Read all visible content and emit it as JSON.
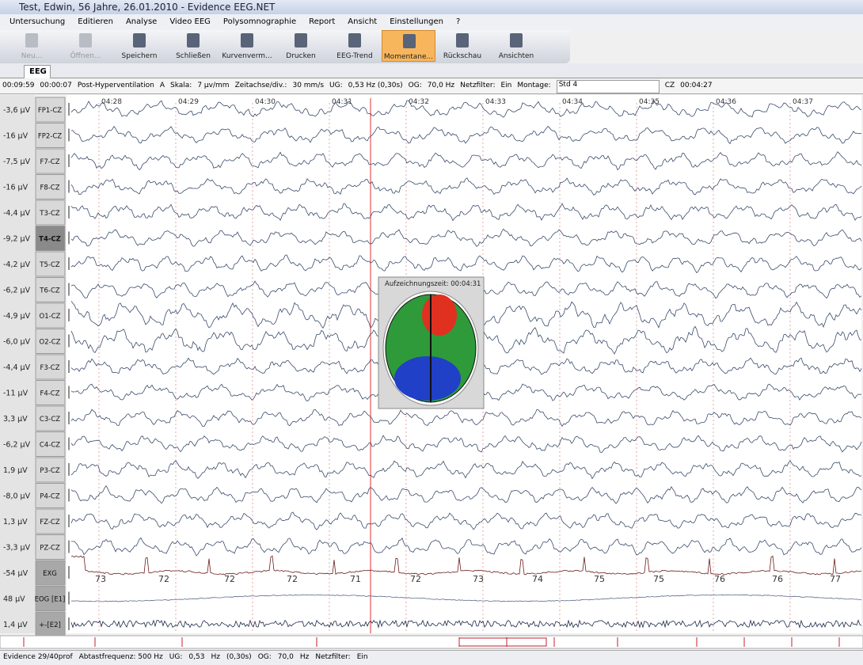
{
  "window": {
    "title": "Test, Edwin, 56 Jahre, 26.01.2010 - Evidence EEG.NET"
  },
  "menu": [
    "Untersuchung",
    "Editieren",
    "Analyse",
    "Video EEG",
    "Polysomnographie",
    "Report",
    "Ansicht",
    "Einstellungen",
    "?"
  ],
  "toolbar": [
    "Neu...",
    "Öffnen...",
    "Speichern",
    "Schließen",
    "Kurvenverm...",
    "Drucken",
    "EEG-Trend",
    "Momentane...",
    "Rückschau",
    "Ansichten"
  ],
  "tab": "EEG",
  "controlbar": [
    "00:09:59",
    "00:00:07",
    "Post-Hyperventilation",
    "A",
    "Skala:",
    "7 µv/mm",
    "Zeitachse/div.:",
    "30 mm/s",
    "UG:",
    "0,53 Hz (0,30s)",
    "OG:",
    "70,0 Hz",
    "Netzfilter:",
    "Ein",
    "Montage:",
    "Std 4",
    "CZ",
    "00:04:27"
  ],
  "time_labels": [
    "04:28",
    "04:29",
    "04:30",
    "04:31",
    "04:32",
    "04:33",
    "04:34",
    "04:35",
    "04:36",
    "04:37"
  ],
  "channels": [
    {
      "offset": "-3,6 µV",
      "label": "FP1-CZ"
    },
    {
      "offset": "-16 µV",
      "label": "FP2-CZ"
    },
    {
      "offset": "-7,5 µV",
      "label": "F7-CZ"
    },
    {
      "offset": "-16 µV",
      "label": "F8-CZ"
    },
    {
      "offset": "-4,4 µV",
      "label": "T3-CZ"
    },
    {
      "offset": "-9,2 µV",
      "label": "T4-CZ"
    },
    {
      "offset": "-4,2 µV",
      "label": "T5-CZ"
    },
    {
      "offset": "-6,2 µV",
      "label": "T6-CZ"
    },
    {
      "offset": "-4,9 µV",
      "label": "O1-CZ"
    },
    {
      "offset": "-6,0 µV",
      "label": "O2-CZ"
    },
    {
      "offset": "-4,4 µV",
      "label": "F3-CZ"
    },
    {
      "offset": "-11 µV",
      "label": "F4-CZ"
    },
    {
      "offset": "3,3 µV",
      "label": "C3-CZ"
    },
    {
      "offset": "-6,2 µV",
      "label": "C4-CZ"
    },
    {
      "offset": "1,9 µV",
      "label": "P3-CZ"
    },
    {
      "offset": "-8,0 µV",
      "label": "P4-CZ"
    },
    {
      "offset": "1,3 µV",
      "label": "FZ-CZ"
    },
    {
      "offset": "-3,3 µV",
      "label": "PZ-CZ"
    },
    {
      "offset": "-54 µV",
      "label": "EXG"
    },
    {
      "offset": "48 µV",
      "label": "EOG [E1]"
    },
    {
      "offset": "1,4 µV",
      "label": "+-[E2]"
    }
  ],
  "heart_rates": [
    73,
    72,
    72,
    72,
    71,
    72,
    73,
    74,
    75,
    75,
    76,
    76,
    77
  ],
  "popup": "Aufzeichnungszeit: 00:04:31",
  "statusbar": [
    "Evidence 29/40prof",
    "Abtastfrequenz: 500 Hz",
    "UG:",
    "0,53",
    "Hz",
    "(0,30s)",
    "OG:",
    "70,0",
    "Hz",
    "Netzfilter:",
    "Ein"
  ]
}
